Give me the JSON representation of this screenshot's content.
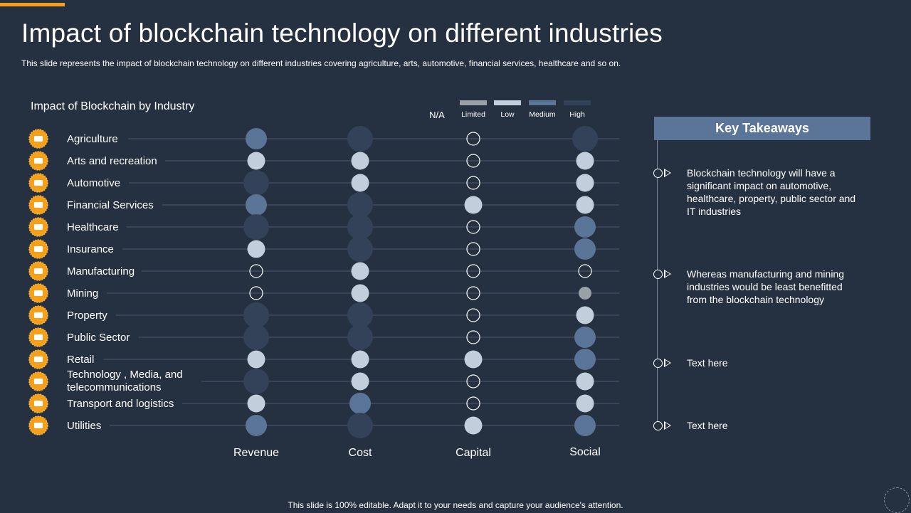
{
  "slide": {
    "title": "Impact of blockchain technology on different industries",
    "subtitle": "This slide represents the impact of blockchain technology on different industries covering agriculture, arts, automotive, financial services, healthcare and so on.",
    "footer": "This slide is 100% editable. Adapt it to your needs and capture your audience's attention."
  },
  "colors": {
    "background": "#253040",
    "accent": "#f5a01a",
    "na": "#ffffff",
    "limited": "#9aa0a8",
    "low": "#c3cedd",
    "medium": "#5a7597",
    "high": "#334258"
  },
  "legend": {
    "na_label": "N/A",
    "items": [
      {
        "key": "limited",
        "label": "Limited"
      },
      {
        "key": "low",
        "label": "Low"
      },
      {
        "key": "medium",
        "label": "Medium"
      },
      {
        "key": "high",
        "label": "High"
      }
    ]
  },
  "chart_data": {
    "type": "table",
    "title": "Impact of Blockchain by Industry",
    "levels": [
      "N/A",
      "Limited",
      "Low",
      "Medium",
      "High"
    ],
    "columns": [
      "Revenue",
      "Cost",
      "Capital",
      "Social"
    ],
    "rows": [
      {
        "industry": "Agriculture",
        "icon": "tractor-icon",
        "values": [
          "Medium",
          "High",
          "N/A",
          "High"
        ]
      },
      {
        "industry": "Arts and recreation",
        "icon": "dancer-icon",
        "values": [
          "Low",
          "Low",
          "N/A",
          "Low"
        ]
      },
      {
        "industry": "Automotive",
        "icon": "car-icon",
        "values": [
          "High",
          "Low",
          "N/A",
          "Low"
        ]
      },
      {
        "industry": "Financial Services",
        "icon": "bank-icon",
        "values": [
          "Medium",
          "High",
          "Low",
          "Low"
        ]
      },
      {
        "industry": "Healthcare",
        "icon": "doctor-icon",
        "values": [
          "High",
          "High",
          "N/A",
          "Medium"
        ]
      },
      {
        "industry": "Insurance",
        "icon": "hand-shield-icon",
        "values": [
          "Low",
          "High",
          "N/A",
          "Medium"
        ]
      },
      {
        "industry": "Manufacturing",
        "icon": "factory-icon",
        "values": [
          "N/A",
          "Low",
          "N/A",
          "N/A"
        ]
      },
      {
        "industry": "Mining",
        "icon": "pickaxe-icon",
        "values": [
          "N/A",
          "Low",
          "N/A",
          "Limited"
        ]
      },
      {
        "industry": "Property",
        "icon": "building-icon",
        "values": [
          "High",
          "High",
          "N/A",
          "Low"
        ]
      },
      {
        "industry": "Public Sector",
        "icon": "government-icon",
        "values": [
          "High",
          "High",
          "N/A",
          "Medium"
        ]
      },
      {
        "industry": "Retail",
        "icon": "cart-icon",
        "values": [
          "Low",
          "Low",
          "Low",
          "Medium"
        ]
      },
      {
        "industry": "Technology , Media, and telecommunications",
        "icon": "media-icon",
        "values": [
          "High",
          "Low",
          "N/A",
          "Low"
        ]
      },
      {
        "industry": "Transport and logistics",
        "icon": "truck-icon",
        "values": [
          "Low",
          "Medium",
          "N/A",
          "Low"
        ]
      },
      {
        "industry": "Utilities",
        "icon": "lightbulb-icon",
        "values": [
          "Medium",
          "High",
          "Low",
          "Medium"
        ]
      }
    ]
  },
  "takeaways": {
    "header": "Key Takeaways",
    "items": [
      {
        "text": "Blockchain technology will have a significant impact on automotive, healthcare, property, public sector and IT industries"
      },
      {
        "text": "Whereas manufacturing and mining industries would be least benefitted from the blockchain technology"
      },
      {
        "text": "Text here"
      },
      {
        "text": "Text here"
      }
    ]
  }
}
